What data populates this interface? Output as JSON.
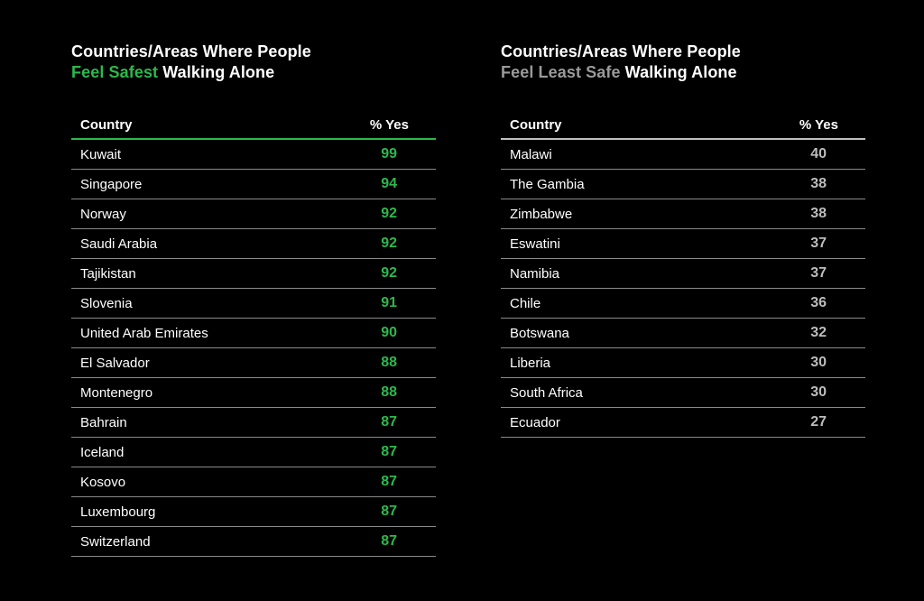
{
  "safest": {
    "title_line1": "Countries/Areas Where People",
    "title_accent": "Feel Safest",
    "title_rest": " Walking Alone",
    "col_country": "Country",
    "col_pct": "% Yes",
    "accent_color": "#2db84d",
    "rows": [
      {
        "country": "Kuwait",
        "value": "99"
      },
      {
        "country": "Singapore",
        "value": "94"
      },
      {
        "country": "Norway",
        "value": "92"
      },
      {
        "country": "Saudi Arabia",
        "value": "92"
      },
      {
        "country": "Tajikistan",
        "value": "92"
      },
      {
        "country": "Slovenia",
        "value": "91"
      },
      {
        "country": "United Arab Emirates",
        "value": "90"
      },
      {
        "country": "El Salvador",
        "value": "88"
      },
      {
        "country": "Montenegro",
        "value": "88"
      },
      {
        "country": "Bahrain",
        "value": "87"
      },
      {
        "country": "Iceland",
        "value": "87"
      },
      {
        "country": "Kosovo",
        "value": "87"
      },
      {
        "country": "Luxembourg",
        "value": "87"
      },
      {
        "country": "Switzerland",
        "value": "87"
      }
    ]
  },
  "least_safe": {
    "title_line1": "Countries/Areas Where People",
    "title_accent": "Feel Least Safe",
    "title_rest": " Walking Alone",
    "col_country": "Country",
    "col_pct": "% Yes",
    "accent_color": "#9a9a9a",
    "rows": [
      {
        "country": "Malawi",
        "value": "40"
      },
      {
        "country": "The Gambia",
        "value": "38"
      },
      {
        "country": "Zimbabwe",
        "value": "38"
      },
      {
        "country": "Eswatini",
        "value": "37"
      },
      {
        "country": "Namibia",
        "value": "37"
      },
      {
        "country": "Chile",
        "value": "36"
      },
      {
        "country": "Botswana",
        "value": "32"
      },
      {
        "country": "Liberia",
        "value": "30"
      },
      {
        "country": "South Africa",
        "value": "30"
      },
      {
        "country": "Ecuador",
        "value": "27"
      }
    ]
  }
}
